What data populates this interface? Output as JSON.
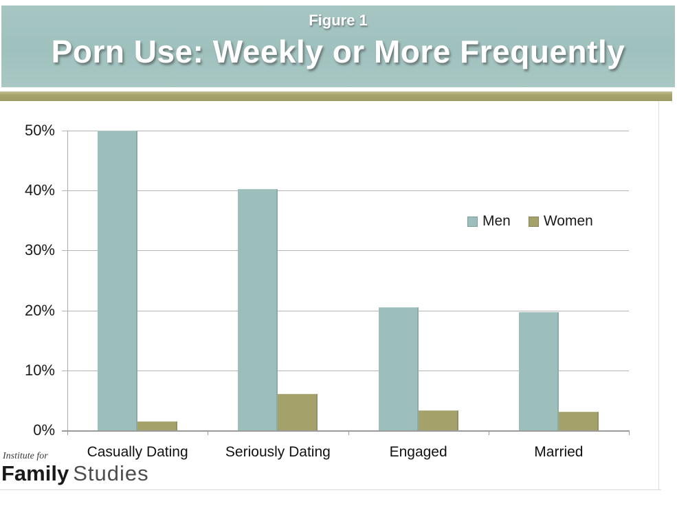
{
  "header": {
    "figure_label": "Figure 1",
    "title": "Porn Use: Weekly or More Frequently"
  },
  "chart_data": {
    "type": "bar",
    "categories": [
      "Casually Dating",
      "Seriously Dating",
      "Engaged",
      "Married"
    ],
    "series": [
      {
        "name": "Men",
        "color": "#9cbfbc",
        "values": [
          50,
          40.3,
          20.5,
          19.7
        ]
      },
      {
        "name": "Women",
        "color": "#a5a16b",
        "values": [
          1.5,
          6.1,
          3.3,
          3.1
        ]
      }
    ],
    "title": "Porn Use: Weekly or More Frequently",
    "xlabel": "",
    "ylabel": "",
    "ylim": [
      0,
      50
    ],
    "y_ticks": [
      {
        "value": 0,
        "label": "0%"
      },
      {
        "value": 10,
        "label": "10%"
      },
      {
        "value": 20,
        "label": "20%"
      },
      {
        "value": 30,
        "label": "30%"
      },
      {
        "value": 40,
        "label": "40%"
      },
      {
        "value": 50,
        "label": "50%"
      }
    ],
    "grid": true,
    "legend_position": "right-middle"
  },
  "footer": {
    "logo_top": "Institute for",
    "logo_bold": "Family",
    "logo_light": "Studies"
  },
  "colors": {
    "header_band": "#9fc1be",
    "accent_strip": "#a8a46e",
    "men_bar": "#9cbfbc",
    "women_bar": "#a5a16b",
    "gridline": "#b3b3b3",
    "text": "#1a1a1a",
    "title_text": "#ffffff"
  }
}
